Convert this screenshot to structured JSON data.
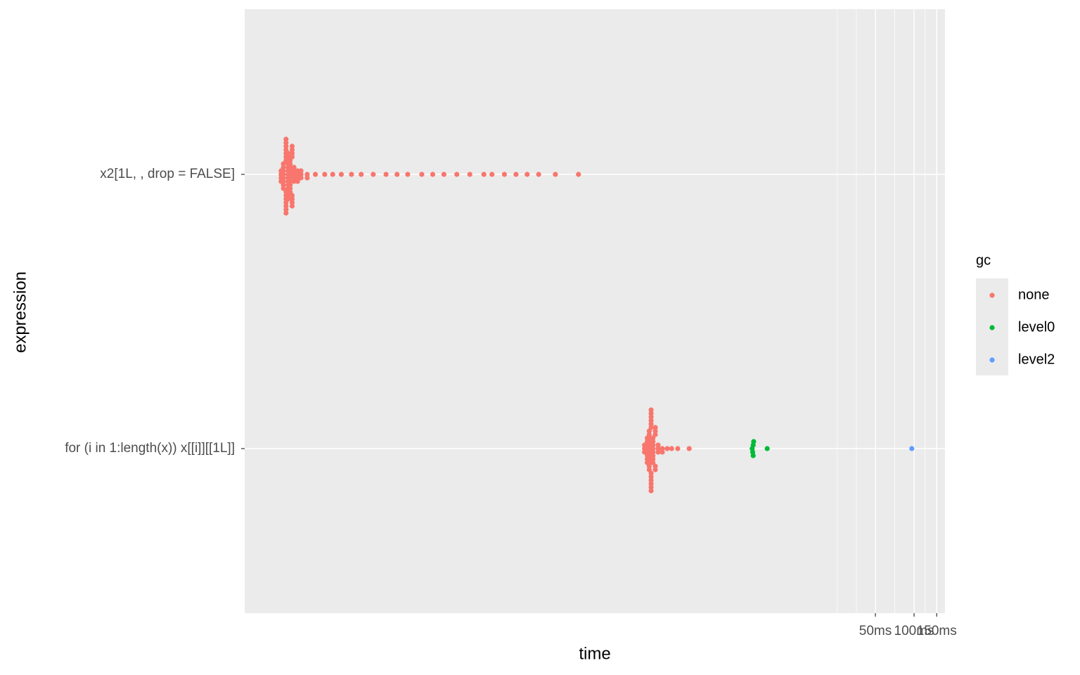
{
  "chart_data": {
    "type": "scatter",
    "x_label": "time",
    "y_label": "expression",
    "categories": [
      "x2[1L, , drop = FALSE]",
      "for (i in 1:length(x)) x[[i]][[1L]]"
    ],
    "xlim": [
      0.00062,
      174
    ],
    "log_x": true,
    "xticks": [
      {
        "value": 50,
        "label": "50ms"
      },
      {
        "value": 100,
        "label": "100ms"
      },
      {
        "value": 150,
        "label": "150ms"
      }
    ],
    "xminorticks": [
      25.3,
      35.6,
      70.7,
      122
    ],
    "grid": true,
    "legend_title": "gc",
    "legend_position": "right",
    "series": [
      {
        "name": "none",
        "color": "#F8766D",
        "values": [
          [
            0.00119,
            0.00119,
            0.00119,
            0.00119,
            0.00124,
            0.00124,
            0.00124,
            0.00124,
            0.00124,
            0.00124,
            0.00124,
            0.00124,
            0.0013,
            0.0013,
            0.0013,
            0.0013,
            0.0013,
            0.0013,
            0.0013,
            0.0013,
            0.0013,
            0.0013,
            0.0013,
            0.0013,
            0.0013,
            0.0013,
            0.00135,
            0.00135,
            0.00135,
            0.00135,
            0.00135,
            0.00135,
            0.00135,
            0.00135,
            0.00135,
            0.00135,
            0.00135,
            0.00135,
            0.00135,
            0.00135,
            0.0014,
            0.0014,
            0.0014,
            0.0014,
            0.0014,
            0.0014,
            0.0014,
            0.0014,
            0.0014,
            0.0014,
            0.00145,
            0.00145,
            0.00145,
            0.00145,
            0.00145,
            0.00145,
            0.00145,
            0.00145,
            0.0015,
            0.0015,
            0.0015,
            0.0015,
            0.0015,
            0.0016,
            0.0016,
            0.0016,
            0.0016,
            0.0017,
            0.0017,
            0.0017,
            0.0019,
            0.0019,
            0.0022,
            0.0026,
            0.003,
            0.0035,
            0.0042,
            0.005,
            0.0062,
            0.0078,
            0.0095,
            0.0115,
            0.0148,
            0.018,
            0.022,
            0.0277,
            0.035,
            0.045,
            0.052,
            0.065,
            0.08,
            0.0977,
            0.12,
            0.162,
            0.245
          ],
          [
            0.8,
            0.8,
            0.8,
            0.84,
            0.84,
            0.84,
            0.84,
            0.84,
            0.84,
            0.84,
            0.84,
            0.87,
            0.87,
            0.87,
            0.87,
            0.87,
            0.87,
            0.87,
            0.87,
            0.87,
            0.87,
            0.87,
            0.87,
            0.9,
            0.9,
            0.9,
            0.9,
            0.9,
            0.9,
            0.9,
            0.9,
            0.9,
            0.9,
            0.9,
            0.9,
            0.93,
            0.93,
            0.93,
            0.93,
            0.93,
            0.93,
            0.93,
            0.93,
            0.97,
            0.97,
            0.97,
            0.97,
            0.97,
            1.02,
            1.02,
            1.02,
            1.1,
            1.1,
            1.2,
            1.3,
            1.45,
            1.78
          ]
        ]
      },
      {
        "name": "level0",
        "color": "#00BA38",
        "values": [
          [],
          [
            5.5,
            5.55,
            5.6,
            5.6,
            5.65,
            7.2
          ]
        ]
      },
      {
        "name": "level2",
        "color": "#619CFF",
        "values": [
          [],
          [
            96
          ]
        ]
      }
    ]
  }
}
